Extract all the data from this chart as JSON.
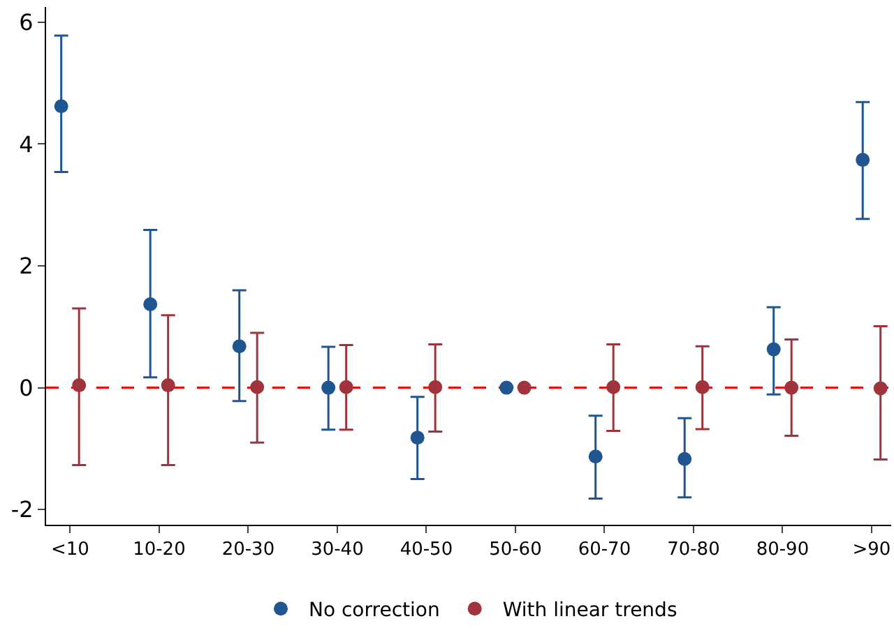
{
  "chart_data": {
    "type": "scatter",
    "categories": [
      "<10",
      "10-20",
      "20-30",
      "30-40",
      "40-50",
      "50-60",
      "60-70",
      "70-80",
      "80-90",
      ">90"
    ],
    "series": [
      {
        "name": "No correction",
        "color": "#1f5591",
        "values": [
          4.62,
          1.37,
          0.68,
          0,
          -0.82,
          0,
          -1.13,
          -1.17,
          0.63,
          3.74
        ],
        "errors": [
          [
            3.54,
            5.78
          ],
          [
            0.17,
            2.59
          ],
          [
            -0.22,
            1.6
          ],
          [
            -0.69,
            0.67
          ],
          [
            -1.5,
            -0.15
          ],
          null,
          [
            -1.82,
            -0.46
          ],
          [
            -1.8,
            -0.5
          ],
          [
            -0.11,
            1.32
          ],
          [
            2.77,
            4.69
          ]
        ]
      },
      {
        "name": "With linear trends",
        "color": "#a0333c",
        "values": [
          0.04,
          0.04,
          0.01,
          0.01,
          0.01,
          0,
          0.01,
          0.01,
          0,
          -0.01
        ],
        "errors": [
          [
            -1.27,
            1.3
          ],
          [
            -1.27,
            1.19
          ],
          [
            -0.9,
            0.9
          ],
          [
            -0.69,
            0.7
          ],
          [
            -0.72,
            0.71
          ],
          null,
          [
            -0.71,
            0.71
          ],
          [
            -0.68,
            0.68
          ],
          [
            -0.79,
            0.79
          ],
          [
            -1.18,
            1.01
          ]
        ]
      }
    ],
    "ylim": [
      -2.25,
      6.25
    ],
    "yticks": [
      -2,
      0,
      2,
      4,
      6
    ],
    "grid": false,
    "legend": "bottom",
    "marker": "circle",
    "ref_lines": [
      {
        "axis": "y",
        "value": 0,
        "color": "#ff0000",
        "line_style": "dashed"
      }
    ]
  }
}
